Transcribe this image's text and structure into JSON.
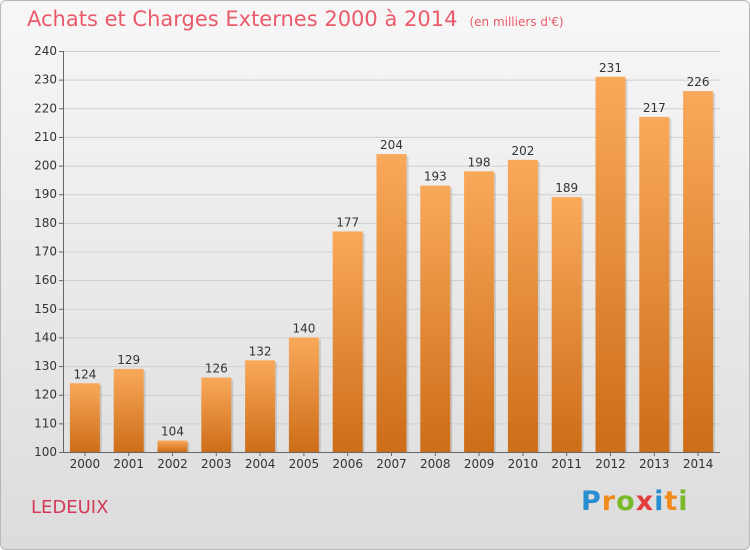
{
  "title": "Achats et Charges Externes 2000 à 2014",
  "unit": "(en milliers d'€)",
  "commune": "LEDEUIX",
  "logo": {
    "letters": [
      "P",
      "r",
      "o",
      "x",
      "i",
      "t",
      "i"
    ],
    "colors": [
      "#2a8fd0",
      "#f08b1c",
      "#7ab928",
      "#e43d3d",
      "#2a8fd0",
      "#f08b1c",
      "#7ab928"
    ]
  },
  "chart_data": {
    "type": "bar",
    "categories": [
      "2000",
      "2001",
      "2002",
      "2003",
      "2004",
      "2005",
      "2006",
      "2007",
      "2008",
      "2009",
      "2010",
      "2011",
      "2012",
      "2013",
      "2014"
    ],
    "values": [
      124,
      129,
      104,
      126,
      132,
      140,
      177,
      204,
      193,
      198,
      202,
      189,
      231,
      217,
      226
    ],
    "ylim": [
      100,
      240
    ],
    "yticks": [
      100,
      110,
      120,
      130,
      140,
      150,
      160,
      170,
      180,
      190,
      200,
      210,
      220,
      230,
      240
    ],
    "grid": true,
    "bar_color_top": "#f9a95a",
    "bar_color_bottom": "#cd6d18"
  }
}
